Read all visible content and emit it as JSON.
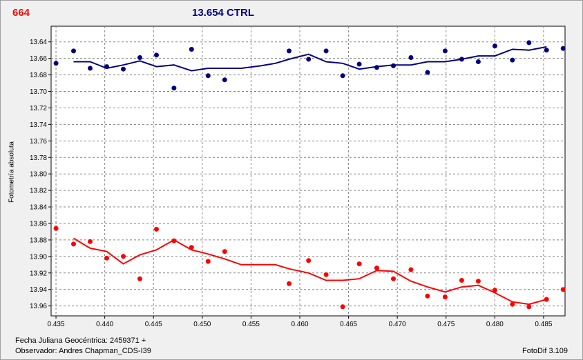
{
  "header": {
    "left_label": "664",
    "center_label": "13.654 CTRL"
  },
  "footer": {
    "julian_date": "Fecha Juliana Geocéntrica: 2459371 +",
    "observer": "Observador: Andres Chapman_CDS-I39",
    "software": "FotoDif 3.109"
  },
  "chart_data": {
    "type": "scatter",
    "title": "",
    "xlabel": "",
    "ylabel": "Fotometría absoluta",
    "xlim": [
      0.4345,
      0.4872
    ],
    "ylim": [
      13.621,
      13.972
    ],
    "y_inverted": true,
    "grid": true,
    "x_ticks": [
      "0.435",
      "0.440",
      "0.445",
      "0.450",
      "0.455",
      "0.460",
      "0.465",
      "0.470",
      "0.475",
      "0.480",
      "0.485"
    ],
    "y_ticks": [
      "13.64",
      "13.66",
      "13.68",
      "13.70",
      "13.72",
      "13.74",
      "13.76",
      "13.78",
      "13.80",
      "13.82",
      "13.84",
      "13.86",
      "13.88",
      "13.90",
      "13.92",
      "13.94",
      "13.96"
    ],
    "series": [
      {
        "color": "#000080",
        "points": [
          [
            0.435,
            13.666
          ],
          [
            0.4368,
            13.651
          ],
          [
            0.4385,
            13.672
          ],
          [
            0.4402,
            13.67
          ],
          [
            0.4419,
            13.673
          ],
          [
            0.4436,
            13.659
          ],
          [
            0.4453,
            13.656
          ],
          [
            0.4471,
            13.696
          ],
          [
            0.4489,
            13.649
          ],
          [
            0.4506,
            13.681
          ],
          [
            0.4523,
            13.686
          ],
          [
            0.4589,
            13.651
          ],
          [
            0.4609,
            13.661
          ],
          [
            0.4627,
            13.651
          ],
          [
            0.4644,
            13.681
          ],
          [
            0.4661,
            13.667
          ],
          [
            0.4679,
            13.671
          ],
          [
            0.4696,
            13.669
          ],
          [
            0.4714,
            13.659
          ],
          [
            0.4731,
            13.677
          ],
          [
            0.4749,
            13.651
          ],
          [
            0.4766,
            13.661
          ],
          [
            0.4783,
            13.664
          ],
          [
            0.48,
            13.645
          ],
          [
            0.4818,
            13.662
          ],
          [
            0.4835,
            13.641
          ],
          [
            0.4853,
            13.65
          ],
          [
            0.487,
            13.648
          ]
        ],
        "trend": [
          [
            0.4368,
            13.664
          ],
          [
            0.4385,
            13.664
          ],
          [
            0.4402,
            13.672
          ],
          [
            0.4419,
            13.668
          ],
          [
            0.4436,
            13.663
          ],
          [
            0.4453,
            13.67
          ],
          [
            0.4471,
            13.668
          ],
          [
            0.4489,
            13.675
          ],
          [
            0.4506,
            13.672
          ],
          [
            0.4523,
            13.672
          ],
          [
            0.454,
            13.672
          ],
          [
            0.456,
            13.669
          ],
          [
            0.4575,
            13.666
          ],
          [
            0.4589,
            13.661
          ],
          [
            0.4609,
            13.655
          ],
          [
            0.4627,
            13.664
          ],
          [
            0.4644,
            13.666
          ],
          [
            0.4661,
            13.673
          ],
          [
            0.4679,
            13.67
          ],
          [
            0.4696,
            13.668
          ],
          [
            0.4714,
            13.668
          ],
          [
            0.4731,
            13.664
          ],
          [
            0.4749,
            13.664
          ],
          [
            0.4766,
            13.661
          ],
          [
            0.4783,
            13.657
          ],
          [
            0.48,
            13.657
          ],
          [
            0.4818,
            13.649
          ],
          [
            0.4835,
            13.65
          ],
          [
            0.4853,
            13.646
          ]
        ]
      },
      {
        "color": "#ff0000",
        "points": [
          [
            0.435,
            13.866
          ],
          [
            0.4368,
            13.885
          ],
          [
            0.4385,
            13.882
          ],
          [
            0.4402,
            13.902
          ],
          [
            0.4419,
            13.9
          ],
          [
            0.4436,
            13.927
          ],
          [
            0.4453,
            13.867
          ],
          [
            0.4471,
            13.881
          ],
          [
            0.4489,
            13.889
          ],
          [
            0.4506,
            13.906
          ],
          [
            0.4523,
            13.894
          ],
          [
            0.4589,
            13.933
          ],
          [
            0.4609,
            13.905
          ],
          [
            0.4627,
            13.922
          ],
          [
            0.4644,
            13.961
          ],
          [
            0.4661,
            13.909
          ],
          [
            0.4679,
            13.914
          ],
          [
            0.4696,
            13.927
          ],
          [
            0.4714,
            13.916
          ],
          [
            0.4731,
            13.948
          ],
          [
            0.4749,
            13.949
          ],
          [
            0.4766,
            13.929
          ],
          [
            0.4783,
            13.93
          ],
          [
            0.48,
            13.941
          ],
          [
            0.4818,
            13.958
          ],
          [
            0.4835,
            13.961
          ],
          [
            0.4853,
            13.952
          ],
          [
            0.487,
            13.94
          ]
        ],
        "trend": [
          [
            0.4368,
            13.878
          ],
          [
            0.4385,
            13.89
          ],
          [
            0.4402,
            13.894
          ],
          [
            0.4419,
            13.909
          ],
          [
            0.4436,
            13.898
          ],
          [
            0.4453,
            13.892
          ],
          [
            0.4471,
            13.88
          ],
          [
            0.4489,
            13.892
          ],
          [
            0.4506,
            13.897
          ],
          [
            0.4523,
            13.903
          ],
          [
            0.454,
            13.91
          ],
          [
            0.456,
            13.91
          ],
          [
            0.4575,
            13.91
          ],
          [
            0.4589,
            13.915
          ],
          [
            0.4609,
            13.92
          ],
          [
            0.4627,
            13.929
          ],
          [
            0.4644,
            13.929
          ],
          [
            0.4661,
            13.927
          ],
          [
            0.4679,
            13.917
          ],
          [
            0.4696,
            13.918
          ],
          [
            0.4714,
            13.93
          ],
          [
            0.4731,
            13.937
          ],
          [
            0.4749,
            13.943
          ],
          [
            0.4766,
            13.937
          ],
          [
            0.4783,
            13.935
          ],
          [
            0.48,
            13.944
          ],
          [
            0.4818,
            13.955
          ],
          [
            0.4835,
            13.958
          ],
          [
            0.4853,
            13.952
          ]
        ]
      }
    ]
  }
}
